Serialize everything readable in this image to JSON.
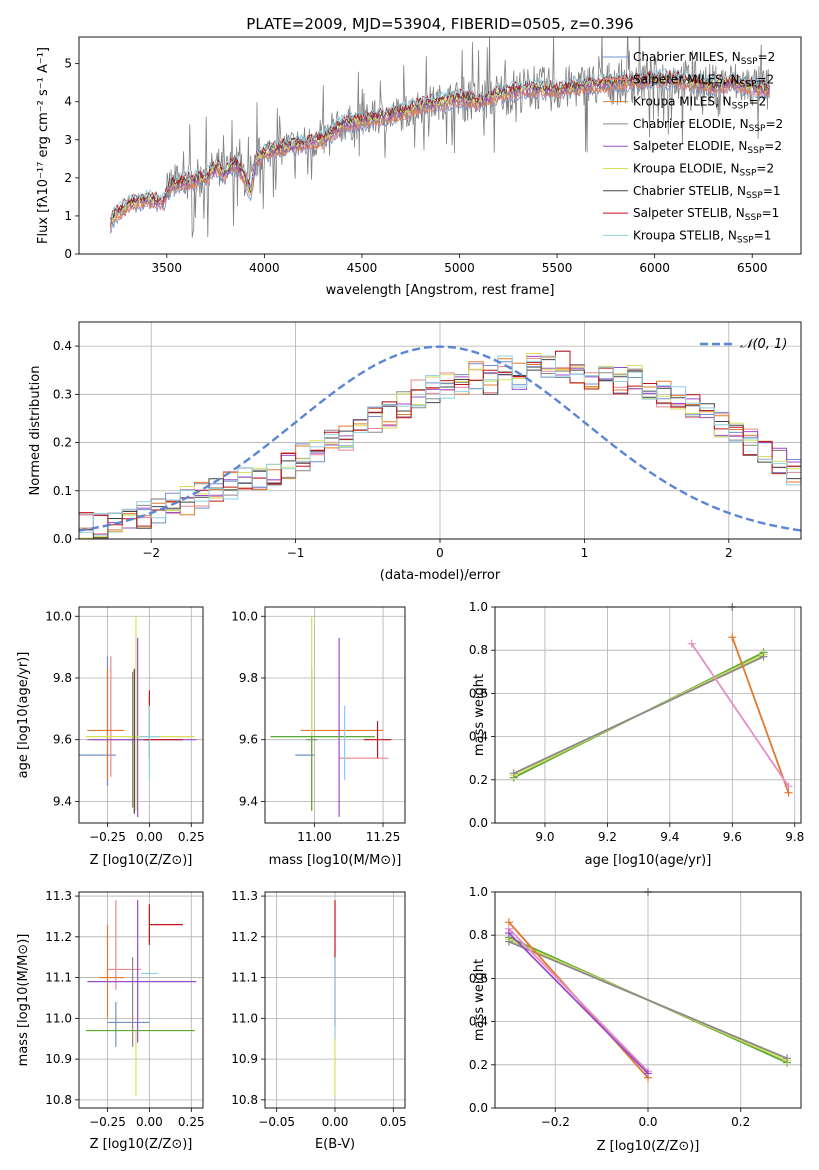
{
  "figure": {
    "title": "PLATE=2009, MJD=53904, FIBERID=0505, z=0.396"
  },
  "colors": {
    "chabrier_miles": "#6f8fce",
    "salpeter_miles": "#e8878e",
    "kroupa_miles": "#e07b2e",
    "chabrier_elodie": "#8a8a8a",
    "salpeter_elodie": "#9b4dc9",
    "kroupa_elodie": "#d8e05a",
    "chabrier_stelib": "#444444",
    "salpeter_stelib": "#c0161b",
    "kroupa_stelib": "#8fd0e0",
    "gaussian": "#5b86d6",
    "green": "#5aa83a",
    "pink": "#e58fc8",
    "grid": "#b0b0b0"
  },
  "chart_data": [
    {
      "id": "spectrum",
      "type": "line",
      "title": "PLATE=2009, MJD=53904, FIBERID=0505, z=0.396",
      "xlabel": "wavelength [Angstrom, rest frame]",
      "ylabel": "Flux [f_λ 10^-17 erg cm^-2 s^-1 A^-1]",
      "xlim": [
        3050,
        6750
      ],
      "ylim": [
        0,
        5.7
      ],
      "xticks": [
        3500,
        4000,
        4500,
        5000,
        5500,
        6000,
        6500
      ],
      "yticks": [
        0,
        1,
        2,
        3,
        4,
        5
      ],
      "grid": false,
      "legend": "top-right",
      "data_x_start": 3210,
      "data_x_end": 6590,
      "series": [
        {
          "name": "Chabrier MILES, N_SSP=2",
          "key": "chabrier_miles"
        },
        {
          "name": "Salpeter MILES, N_SSP=2",
          "key": "salpeter_miles"
        },
        {
          "name": "Kroupa MILES, N_SSP=2",
          "key": "kroupa_miles"
        },
        {
          "name": "Chabrier ELODIE, N_SSP=2",
          "key": "chabrier_elodie"
        },
        {
          "name": "Salpeter ELODIE, N_SSP=2",
          "key": "salpeter_elodie"
        },
        {
          "name": "Kroupa ELODIE, N_SSP=2",
          "key": "kroupa_elodie"
        },
        {
          "name": "Chabrier STELIB, N_SSP=1",
          "key": "chabrier_stelib"
        },
        {
          "name": "Salpeter STELIB, N_SSP=1",
          "key": "salpeter_stelib"
        },
        {
          "name": "Kroupa STELIB, N_SSP=1",
          "key": "kroupa_stelib"
        }
      ],
      "model_continuum": {
        "x": [
          3210,
          3230,
          3300,
          3400,
          3480,
          3520,
          3600,
          3700,
          3760,
          3800,
          3850,
          3900,
          3930,
          3960,
          4000,
          4050,
          4100,
          4200,
          4300,
          4400,
          4500,
          4600,
          4700,
          4800,
          4900,
          5000,
          5100,
          5200,
          5300,
          5400,
          5500,
          5600,
          5700,
          5800,
          5900,
          6000,
          6100,
          6200,
          6300,
          6400,
          6500,
          6590
        ],
        "y": [
          0.8,
          1.0,
          1.3,
          1.45,
          1.35,
          1.8,
          1.9,
          2.0,
          2.3,
          2.1,
          2.4,
          2.0,
          1.6,
          2.5,
          2.65,
          2.75,
          2.8,
          2.9,
          3.0,
          3.4,
          3.5,
          3.6,
          3.7,
          3.9,
          4.0,
          4.1,
          4.0,
          4.2,
          4.3,
          4.35,
          4.3,
          4.4,
          4.45,
          4.5,
          4.55,
          4.6,
          4.6,
          4.5,
          4.4,
          4.5,
          4.4,
          4.3
        ]
      },
      "data_envelope_note_free": true
    },
    {
      "id": "residuals",
      "type": "line",
      "xlabel": "(data-model)/error",
      "ylabel": "Normed distribution",
      "xlim": [
        -2.5,
        2.5
      ],
      "ylim": [
        0,
        0.45
      ],
      "xticks": [
        -2,
        -1,
        0,
        1,
        2
      ],
      "yticks": [
        0.0,
        0.1,
        0.2,
        0.3,
        0.4
      ],
      "grid": true,
      "legend": "top-right",
      "gaussian_label": "𝒩(0, 1)",
      "gaussian": {
        "mu": 0,
        "sigma": 1
      },
      "bin_start": -2.5,
      "bin_width": 0.1,
      "base_hist": [
        0.03,
        0.03,
        0.035,
        0.04,
        0.05,
        0.06,
        0.07,
        0.08,
        0.09,
        0.1,
        0.11,
        0.12,
        0.13,
        0.14,
        0.15,
        0.17,
        0.18,
        0.2,
        0.21,
        0.23,
        0.25,
        0.26,
        0.28,
        0.3,
        0.31,
        0.32,
        0.33,
        0.34,
        0.33,
        0.35,
        0.34,
        0.36,
        0.35,
        0.36,
        0.35,
        0.34,
        0.35,
        0.33,
        0.34,
        0.32,
        0.3,
        0.29,
        0.27,
        0.26,
        0.24,
        0.22,
        0.2,
        0.18,
        0.16,
        0.14
      ]
    },
    {
      "id": "z_age",
      "type": "scatter",
      "xlabel": "Z [log10(Z/Z⊙)]",
      "ylabel": "age  [log10(age/yr)]",
      "xlim": [
        -0.42,
        0.32
      ],
      "ylim": [
        9.33,
        10.03
      ],
      "xticks": [
        -0.25,
        0.0,
        0.25
      ],
      "yticks": [
        9.4,
        9.6,
        9.8,
        10.0
      ],
      "grid": true,
      "errorbars": [
        {
          "key": "chabrier_miles",
          "x": -0.25,
          "y": 9.55,
          "xerr": [
            0.25,
            0.05
          ],
          "yerr": [
            0.1,
            0.32
          ]
        },
        {
          "key": "salpeter_miles",
          "x": -0.23,
          "y": 9.6,
          "xerr": [
            0.1,
            0.05
          ],
          "yerr": [
            0.12,
            0.27
          ]
        },
        {
          "key": "kroupa_miles",
          "x": -0.25,
          "y": 9.63,
          "xerr": [
            0.12,
            0.1
          ],
          "yerr": [
            0.16,
            0.2
          ]
        },
        {
          "key": "chabrier_elodie",
          "x": -0.1,
          "y": 9.6,
          "xerr": [
            0.12,
            0.1
          ],
          "yerr": [
            0.22,
            0.22
          ]
        },
        {
          "key": "salpeter_elodie",
          "x": -0.07,
          "y": 9.6,
          "xerr": [
            0.3,
            0.35
          ],
          "yerr": [
            0.25,
            0.33
          ]
        },
        {
          "key": "kroupa_elodie",
          "x": -0.08,
          "y": 9.61,
          "xerr": [
            0.3,
            0.35
          ],
          "yerr": [
            0.24,
            0.39
          ]
        },
        {
          "key": "chabrier_stelib",
          "x": -0.09,
          "y": 9.6,
          "xerr": [
            0.0,
            0.0
          ],
          "yerr": [
            0.24,
            0.23
          ]
        },
        {
          "key": "salpeter_stelib",
          "x": 0.0,
          "y": 9.6,
          "xerr": [
            0.03,
            0.2
          ],
          "yerr": [
            0.06,
            0.16
          ]
        },
        {
          "key": "kroupa_stelib",
          "x": 0.0,
          "y": 9.61,
          "xerr": [
            0.06,
            0.06
          ],
          "yerr": [
            0.14,
            0.1
          ]
        }
      ]
    },
    {
      "id": "mass_age",
      "type": "scatter",
      "xlabel": "mass [log10(M/M⊙)]",
      "ylabel": "",
      "xlim": [
        10.82,
        11.33
      ],
      "ylim": [
        9.33,
        10.03
      ],
      "xticks": [
        11.0,
        11.25
      ],
      "yticks": [
        9.4,
        9.6,
        9.8,
        10.0
      ],
      "grid": true,
      "errorbars": [
        {
          "key": "chabrier_miles",
          "x": 10.99,
          "y": 9.55,
          "xerr": [
            0.06,
            0.01
          ],
          "yerr": [
            0.0,
            0.0
          ]
        },
        {
          "key": "salpeter_miles",
          "x": 11.12,
          "y": 9.54,
          "xerr": [
            0.03,
            0.15
          ],
          "yerr": [
            0.0,
            0.0
          ]
        },
        {
          "key": "kroupa_miles",
          "x": 11.0,
          "y": 9.63,
          "xerr": [
            0.05,
            0.25
          ],
          "yerr": [
            0.0,
            0.0
          ]
        },
        {
          "key": "chabrier_elodie",
          "x": 10.99,
          "y": 9.6,
          "xerr": [
            0.02,
            0.02
          ],
          "yerr": [
            0.23,
            0.23
          ]
        },
        {
          "key": "salpeter_elodie",
          "x": 11.09,
          "y": 9.6,
          "xerr": [
            0.0,
            0.0
          ],
          "yerr": [
            0.25,
            0.33
          ]
        },
        {
          "key": "kroupa_elodie",
          "x": 10.99,
          "y": 9.61,
          "xerr": [
            0.15,
            0.23
          ],
          "yerr": [
            0.24,
            0.39
          ]
        },
        {
          "key": "green",
          "x": 10.99,
          "y": 9.61,
          "xerr": [
            0.15,
            0.23
          ],
          "yerr": [
            0.24,
            0.0
          ]
        },
        {
          "key": "salpeter_stelib",
          "x": 11.23,
          "y": 9.6,
          "xerr": [
            0.05,
            0.05
          ],
          "yerr": [
            0.06,
            0.06
          ]
        },
        {
          "key": "kroupa_stelib",
          "x": 11.11,
          "y": 9.61,
          "xerr": [
            0.0,
            0.0
          ],
          "yerr": [
            0.14,
            0.1
          ]
        }
      ]
    },
    {
      "id": "age_weight",
      "type": "line",
      "xlabel": "age  [log10(age/yr)]",
      "ylabel": "mass weight",
      "xlim": [
        8.84,
        9.82
      ],
      "ylim": [
        0.0,
        1.0
      ],
      "xticks": [
        9.0,
        9.2,
        9.4,
        9.6,
        9.8
      ],
      "yticks": [
        0.0,
        0.2,
        0.4,
        0.6,
        0.8,
        1.0
      ],
      "grid": true,
      "series": [
        {
          "key": "green",
          "x": [
            8.9,
            9.7
          ],
          "y": [
            0.21,
            0.79
          ]
        },
        {
          "key": "kroupa_elodie",
          "x": [
            8.9,
            9.7
          ],
          "y": [
            0.22,
            0.78
          ]
        },
        {
          "key": "chabrier_elodie",
          "x": [
            8.9,
            9.7
          ],
          "y": [
            0.23,
            0.77
          ]
        },
        {
          "key": "kroupa_miles",
          "x": [
            9.6,
            9.78
          ],
          "y": [
            0.86,
            0.14
          ]
        },
        {
          "key": "pink",
          "x": [
            9.47,
            9.78
          ],
          "y": [
            0.83,
            0.17
          ]
        },
        {
          "key": "chabrier_elodie",
          "x": [
            9.6,
            9.6
          ],
          "y": [
            1.0,
            1.0
          ]
        }
      ]
    },
    {
      "id": "z_mass",
      "type": "scatter",
      "xlabel": "Z [log10(Z/Z⊙)]",
      "ylabel": "mass [log10(M/M⊙)]",
      "xlim": [
        -0.42,
        0.32
      ],
      "ylim": [
        10.78,
        11.31
      ],
      "xticks": [
        -0.25,
        0.0,
        0.25
      ],
      "yticks": [
        10.8,
        10.9,
        11.0,
        11.1,
        11.2,
        11.3
      ],
      "grid": true,
      "errorbars": [
        {
          "key": "chabrier_miles",
          "x": -0.2,
          "y": 10.99,
          "xerr": [
            0.05,
            0.2
          ],
          "yerr": [
            0.06,
            0.05
          ]
        },
        {
          "key": "salpeter_miles",
          "x": -0.2,
          "y": 11.12,
          "xerr": [
            0.05,
            0.15
          ],
          "yerr": [
            0.05,
            0.17
          ]
        },
        {
          "key": "kroupa_miles",
          "x": -0.25,
          "y": 11.1,
          "xerr": [
            0.05,
            0.1
          ],
          "yerr": [
            0.1,
            0.13
          ]
        },
        {
          "key": "chabrier_elodie",
          "x": -0.1,
          "y": 11.1,
          "xerr": [
            0.0,
            0.0
          ],
          "yerr": [
            0.17,
            0.05
          ]
        },
        {
          "key": "salpeter_elodie",
          "x": -0.07,
          "y": 11.09,
          "xerr": [
            0.3,
            0.35
          ],
          "yerr": [
            0.15,
            0.2
          ]
        },
        {
          "key": "kroupa_elodie",
          "x": -0.08,
          "y": 10.97,
          "xerr": [
            0.3,
            0.35
          ],
          "yerr": [
            0.16,
            0.0
          ]
        },
        {
          "key": "green",
          "x": -0.08,
          "y": 10.97,
          "xerr": [
            0.3,
            0.35
          ],
          "yerr": [
            0.0,
            0.0
          ]
        },
        {
          "key": "salpeter_stelib",
          "x": 0.0,
          "y": 11.23,
          "xerr": [
            0.0,
            0.2
          ],
          "yerr": [
            0.05,
            0.05
          ]
        },
        {
          "key": "kroupa_stelib",
          "x": 0.0,
          "y": 11.11,
          "xerr": [
            0.05,
            0.05
          ],
          "yerr": [
            0.0,
            0.0
          ]
        }
      ]
    },
    {
      "id": "ebv_mass",
      "type": "scatter",
      "xlabel": "E(B-V)",
      "ylabel": "",
      "xlim": [
        -0.06,
        0.06
      ],
      "ylim": [
        10.78,
        11.31
      ],
      "xticks": [
        -0.05,
        0.0,
        0.05
      ],
      "yticks": [
        10.8,
        10.9,
        11.0,
        11.1,
        11.2,
        11.3
      ],
      "grid": true,
      "errorbars": [
        {
          "key": "salpeter_stelib",
          "x": 0.0,
          "y": 11.14,
          "xerr": [
            0.0,
            0.0
          ],
          "yerr": [
            0.16,
            0.15
          ]
        },
        {
          "key": "kroupa_stelib",
          "x": 0.0,
          "y": 11.05,
          "xerr": [
            0.0,
            0.0
          ],
          "yerr": [
            0.1,
            0.1
          ]
        },
        {
          "key": "kroupa_elodie",
          "x": 0.0,
          "y": 10.9,
          "xerr": [
            0.0,
            0.0
          ],
          "yerr": [
            0.09,
            0.05
          ]
        }
      ]
    },
    {
      "id": "z_weight",
      "type": "line",
      "xlabel": "Z [log10(Z/Z⊙)]",
      "ylabel": "mass weight",
      "xlim": [
        -0.33,
        0.33
      ],
      "ylim": [
        0.0,
        1.0
      ],
      "xticks": [
        -0.2,
        0.0,
        0.2
      ],
      "yticks": [
        0.0,
        0.2,
        0.4,
        0.6,
        0.8,
        1.0
      ],
      "grid": true,
      "series": [
        {
          "key": "green",
          "x": [
            -0.3,
            0.3
          ],
          "y": [
            0.79,
            0.21
          ]
        },
        {
          "key": "kroupa_elodie",
          "x": [
            -0.3,
            0.3
          ],
          "y": [
            0.78,
            0.22
          ]
        },
        {
          "key": "chabrier_elodie",
          "x": [
            -0.3,
            0.3
          ],
          "y": [
            0.77,
            0.23
          ]
        },
        {
          "key": "kroupa_miles",
          "x": [
            -0.3,
            0.0
          ],
          "y": [
            0.86,
            0.14
          ]
        },
        {
          "key": "pink",
          "x": [
            -0.3,
            0.0
          ],
          "y": [
            0.83,
            0.17
          ]
        },
        {
          "key": "salpeter_elodie",
          "x": [
            -0.3,
            0.0
          ],
          "y": [
            0.81,
            0.16
          ]
        },
        {
          "key": "chabrier_elodie",
          "x": [
            0.0,
            0.0
          ],
          "y": [
            1.0,
            1.0
          ]
        }
      ]
    }
  ]
}
